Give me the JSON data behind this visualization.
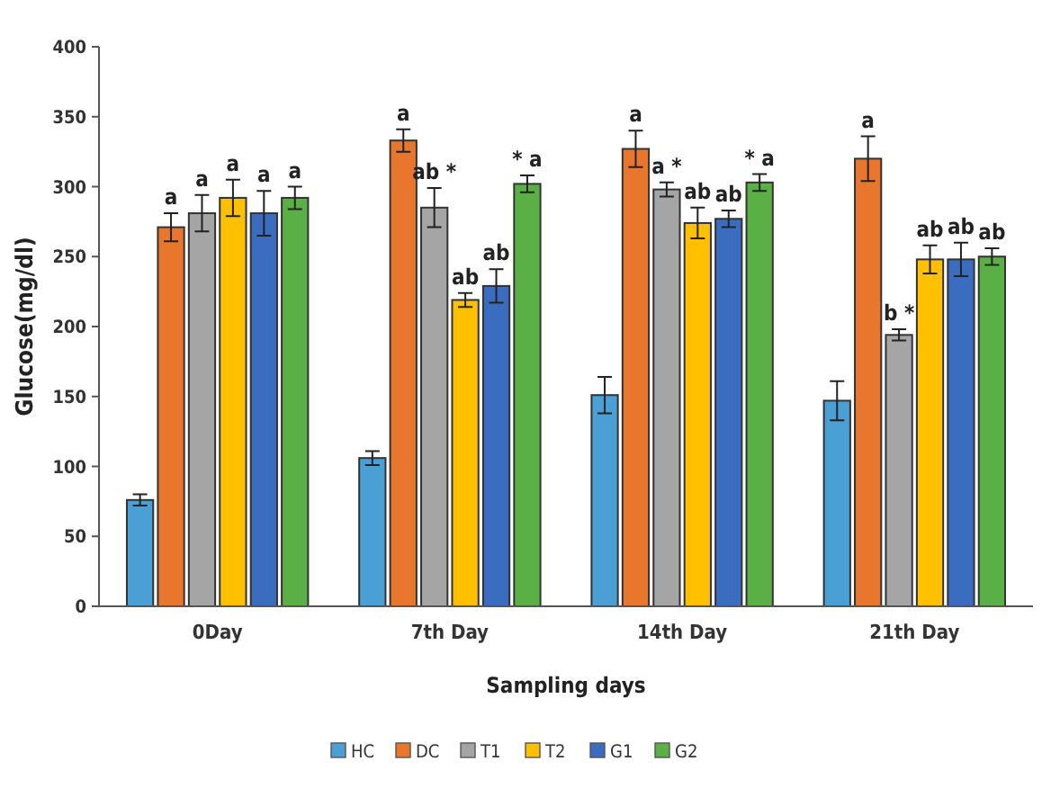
{
  "chart_data": {
    "type": "bar",
    "xlabel": "Sampling days",
    "ylabel": "Glucose(mg/dl)",
    "categories": [
      "0Day",
      "7th Day",
      "14th Day",
      "21th Day"
    ],
    "series": [
      {
        "name": "HC",
        "color": "#4a9fd4",
        "values": [
          76,
          106,
          151,
          147
        ],
        "errors": [
          4,
          5,
          13,
          14
        ],
        "value_labels": [
          null,
          null,
          null,
          null
        ]
      },
      {
        "name": "DC",
        "color": "#e8762c",
        "values": [
          271,
          333,
          327,
          320
        ],
        "errors": [
          10,
          8,
          13,
          16
        ],
        "value_labels": [
          "a",
          "a",
          "a",
          "a"
        ]
      },
      {
        "name": "T1",
        "color": "#a5a5a5",
        "values": [
          281,
          285,
          298,
          194
        ],
        "errors": [
          13,
          14,
          5,
          4
        ],
        "value_labels": [
          "a",
          "ab *",
          "a *",
          "b *"
        ]
      },
      {
        "name": "T2",
        "color": "#ffc000",
        "values": [
          292,
          219,
          274,
          248
        ],
        "errors": [
          13,
          5,
          11,
          10
        ],
        "value_labels": [
          "a",
          "ab",
          "ab",
          "ab"
        ]
      },
      {
        "name": "G1",
        "color": "#3a6cc0",
        "values": [
          281,
          229,
          277,
          248
        ],
        "errors": [
          16,
          12,
          6,
          12
        ],
        "value_labels": [
          "a",
          "ab",
          "ab",
          "ab"
        ]
      },
      {
        "name": "G2",
        "color": "#5ab045",
        "values": [
          292,
          302,
          303,
          250
        ],
        "errors": [
          8,
          6,
          6,
          6
        ],
        "value_labels": [
          "a",
          "* a",
          "* a",
          "ab"
        ]
      }
    ],
    "ylim": [
      0,
      400
    ],
    "yticks": [
      0,
      50,
      100,
      150,
      200,
      250,
      300,
      350,
      400
    ],
    "grid": false,
    "legend": "bottom"
  }
}
